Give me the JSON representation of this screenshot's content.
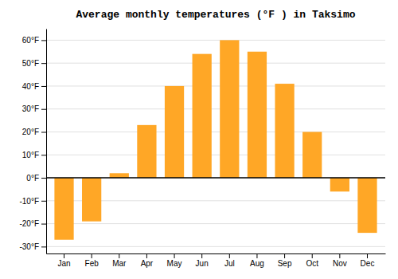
{
  "chart_data": {
    "type": "bar",
    "title": "Average monthly temperatures (°F ) in Taksimo",
    "categories": [
      "Jan",
      "Feb",
      "Mar",
      "Apr",
      "May",
      "Jun",
      "Jul",
      "Aug",
      "Sep",
      "Oct",
      "Nov",
      "Dec"
    ],
    "values": [
      -27,
      -19,
      2,
      23,
      40,
      54,
      60,
      55,
      41,
      20,
      -6,
      -24
    ],
    "color": "#FFA726",
    "ylim": [
      -33,
      65
    ],
    "yticks": [
      {
        "value": -30,
        "label": "-30°F"
      },
      {
        "value": -20,
        "label": "-20°F"
      },
      {
        "value": -10,
        "label": "-10°F"
      },
      {
        "value": 0,
        "label": "0°F"
      },
      {
        "value": 10,
        "label": "10°F"
      },
      {
        "value": 20,
        "label": "20°F"
      },
      {
        "value": 30,
        "label": "30°F"
      },
      {
        "value": 40,
        "label": "40°F"
      },
      {
        "value": 50,
        "label": "50°F"
      },
      {
        "value": 60,
        "label": "60°F"
      }
    ],
    "grid": true
  }
}
